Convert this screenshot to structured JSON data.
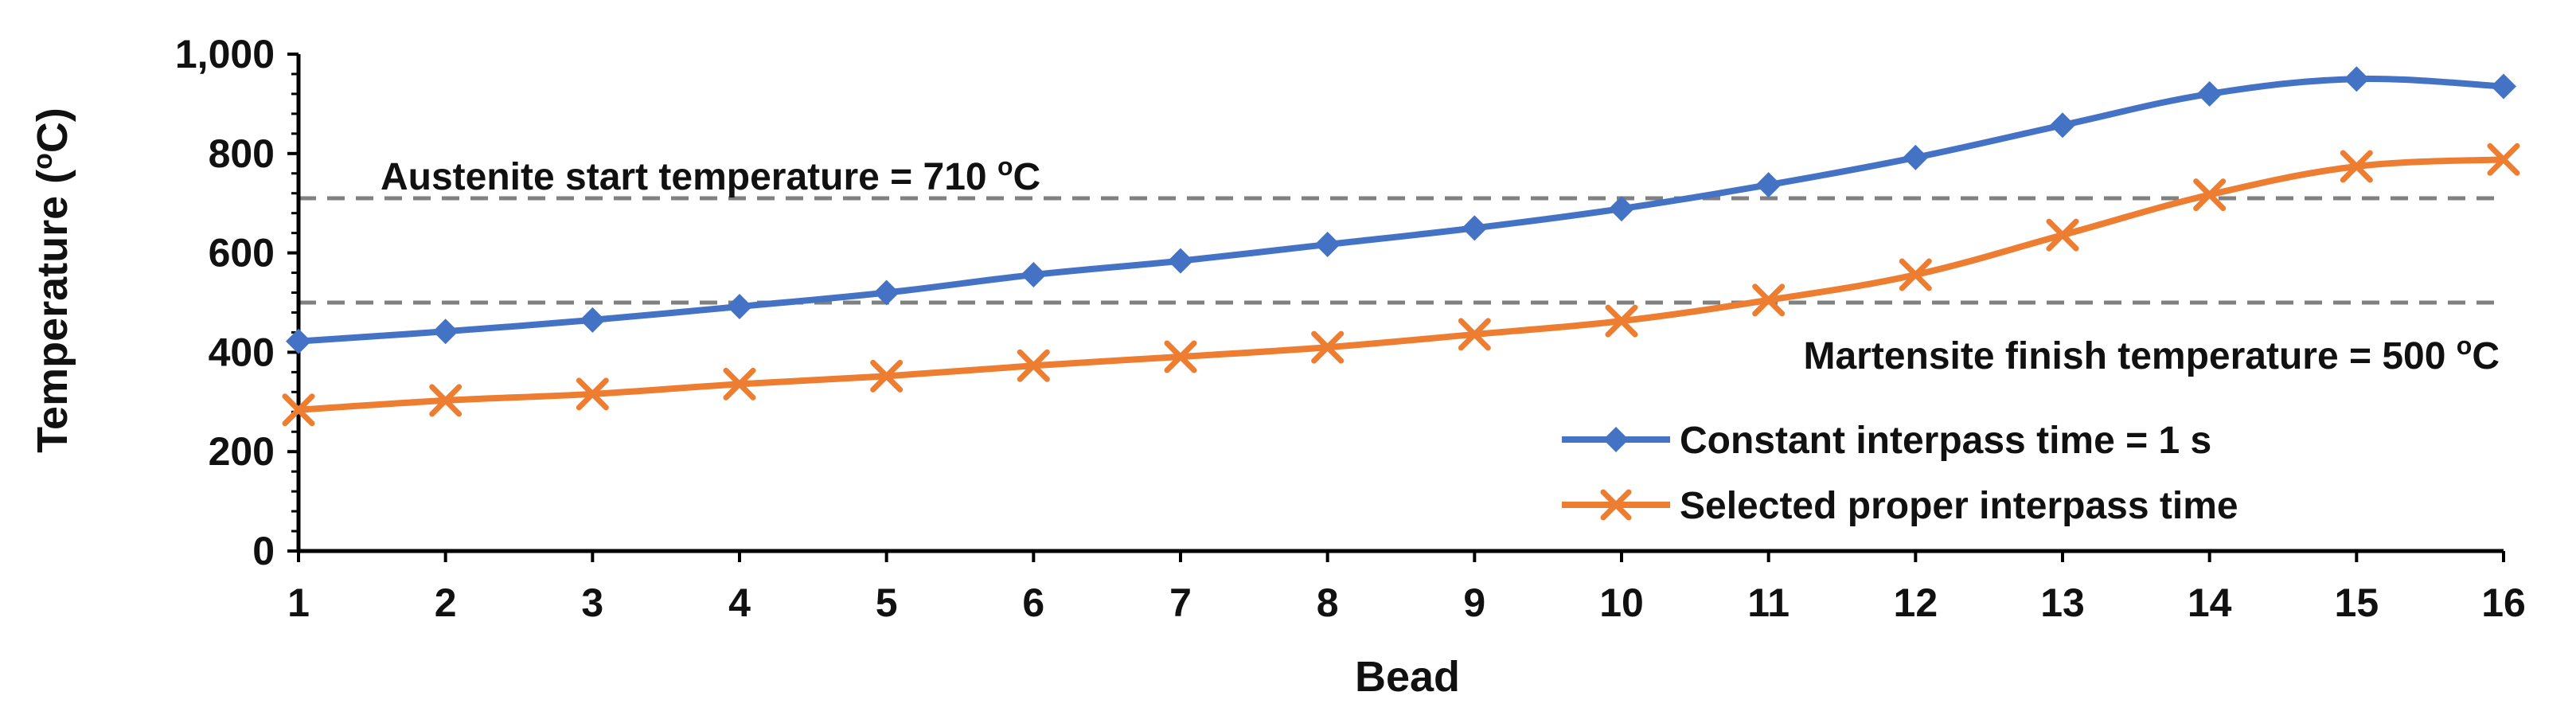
{
  "chart_data": {
    "type": "line",
    "xlabel": "Bead",
    "ylabel": "Temperature (oC)",
    "ylabel_base": "Temperature (",
    "ylabel_unit_sup": "o",
    "ylabel_unit_tail": "C)",
    "x": [
      1,
      2,
      3,
      4,
      5,
      6,
      7,
      8,
      9,
      10,
      11,
      12,
      13,
      14,
      15,
      16
    ],
    "xlim": [
      1,
      16
    ],
    "ylim": [
      0,
      1000
    ],
    "yticks": [
      0,
      200,
      400,
      600,
      800,
      1000
    ],
    "ytick_labels": [
      "0",
      "200",
      "400",
      "600",
      "800",
      "1,000"
    ],
    "series": [
      {
        "name": "Constant interpass time = 1 s",
        "color": "#4472C4",
        "marker": "diamond",
        "values": [
          422,
          442,
          465,
          492,
          520,
          556,
          584,
          617,
          650,
          689,
          737,
          792,
          857,
          920,
          950,
          935
        ]
      },
      {
        "name": "Selected proper interpass time",
        "color": "#ED7D31",
        "marker": "x",
        "values": [
          284,
          303,
          316,
          336,
          352,
          373,
          391,
          410,
          436,
          463,
          505,
          556,
          636,
          717,
          774,
          788
        ]
      }
    ],
    "reference_lines": [
      {
        "value": 710,
        "color": "#808080",
        "label": "Austenite start temperature = 710 oC",
        "label_base": "Austenite start temperature = 710 ",
        "label_sup": "o",
        "label_tail": "C"
      },
      {
        "value": 500,
        "color": "#808080",
        "label": "Martensite finish temperature = 500 oC",
        "label_base": "Martensite finish temperature = 500 ",
        "label_sup": "o",
        "label_tail": "C"
      }
    ],
    "grid": false,
    "legend_position": "bottom-right"
  }
}
